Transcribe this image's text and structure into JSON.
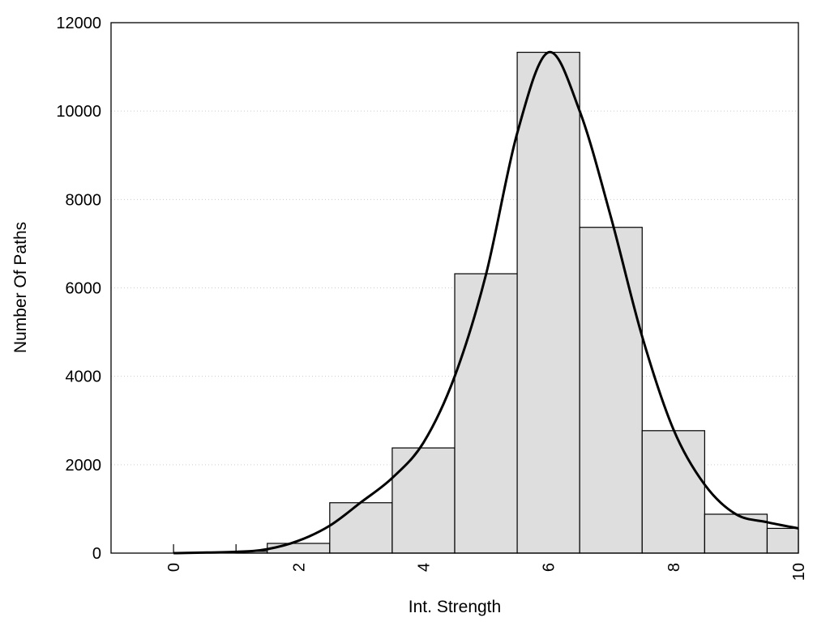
{
  "chart_data": {
    "type": "bar",
    "title": "",
    "xlabel": "Int. Strength",
    "ylabel": "Number Of Paths",
    "xlim": [
      -1,
      10
    ],
    "ylim": [
      0,
      12000
    ],
    "grid": "horizontal dotted",
    "xticks": [
      "0",
      "2",
      "4",
      "6",
      "8",
      "10"
    ],
    "xtick_values": [
      0,
      2,
      4,
      6,
      8,
      10
    ],
    "yticks": [
      "0",
      "2000",
      "4000",
      "6000",
      "8000",
      "10000",
      "12000"
    ],
    "ytick_values": [
      0,
      2000,
      4000,
      6000,
      8000,
      10000,
      12000
    ],
    "bins": [
      {
        "from": 0,
        "to": 1,
        "value": 0
      },
      {
        "from": 1,
        "to": 1.5,
        "value": 40
      },
      {
        "from": 1.5,
        "to": 2.5,
        "value": 220
      },
      {
        "from": 2.5,
        "to": 3.5,
        "value": 1140
      },
      {
        "from": 3.5,
        "to": 4.5,
        "value": 2380
      },
      {
        "from": 4.5,
        "to": 5.5,
        "value": 6320
      },
      {
        "from": 5.5,
        "to": 6.5,
        "value": 11330
      },
      {
        "from": 6.5,
        "to": 7.5,
        "value": 7370
      },
      {
        "from": 7.5,
        "to": 8.5,
        "value": 2770
      },
      {
        "from": 8.5,
        "to": 9.5,
        "value": 880
      },
      {
        "from": 9.5,
        "to": 10,
        "value": 560
      }
    ],
    "density_curve": {
      "x": [
        0,
        1,
        1.5,
        2,
        2.5,
        3,
        3.5,
        4,
        4.5,
        5,
        5.5,
        6,
        6.5,
        7,
        7.5,
        8,
        8.5,
        9,
        9.5,
        10
      ],
      "y": [
        0,
        30,
        90,
        280,
        620,
        1150,
        1700,
        2500,
        4000,
        6300,
        9500,
        11330,
        10000,
        7600,
        4900,
        2800,
        1550,
        880,
        700,
        560
      ]
    },
    "colors": {
      "bar_fill": "#dedede",
      "bar_edge": "#000000",
      "curve": "#000000",
      "grid": "#cccccc"
    }
  }
}
